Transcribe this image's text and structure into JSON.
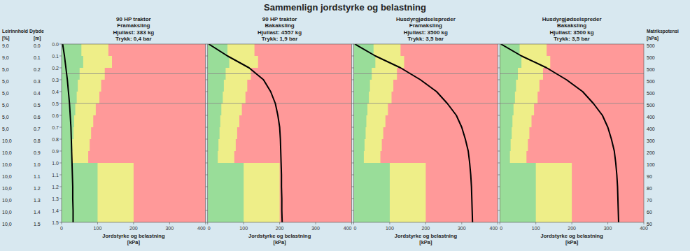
{
  "title": "Sammenlign jordstyrke og belastning",
  "color": "#d8e8f0",
  "annotations": {
    "left_header": "Leirinnhold Dybde",
    "clay_unit": "[%]",
    "depth_unit": "[m]",
    "clay": [
      "9,0",
      "9,0",
      "5,0",
      "5,0",
      "5,0",
      "5,0",
      "5,0",
      "5,0",
      "10,0",
      "10,0",
      "10,0",
      "10,0",
      "10,0",
      "10,0",
      "10,0",
      "10,0"
    ],
    "depth": [
      {
        "value": 0.0,
        "label": "0.0"
      },
      0.1,
      0.2,
      0.3,
      0.4,
      0.5,
      0.6,
      0.7,
      0.8,
      0.9,
      {
        "value": 1.0,
        "label": "1.0"
      },
      1.1,
      1.2,
      1.3,
      1.4,
      1.5
    ],
    "matric_header": "Matrikspotensi",
    "matric_unit": "[hPa]",
    "matric": [
      500,
      500,
      500,
      500,
      500,
      500,
      400,
      400,
      300,
      200,
      100,
      90,
      80,
      70,
      60,
      50
    ]
  },
  "chart_data": [
    {
      "type": "bar",
      "orientation": "horizontal",
      "title": "90 HP traktor\nFramaksling\nHjullast: 383 kg\nTrykk: 0,4 bar",
      "x_label": "Jordstyrke og belastning\n[kPa]",
      "color": "#ff9999",
      "xlim": [
        0,
        400
      ],
      "xticks": [
        0,
        100,
        200,
        300,
        400
      ],
      "ylim": [
        1.5,
        0.0
      ],
      "yticks": [
        {
          "value": 0.0,
          "label": "0.0"
        },
        0.1,
        0.2,
        0.3,
        0.4,
        0.5,
        0.6,
        0.7,
        0.8,
        0.9,
        {
          "value": 1.0,
          "label": "1.0"
        },
        1.1,
        1.2,
        1.3,
        1.4,
        1.5
      ],
      "bins": [
        0.0,
        0.1,
        0.2,
        0.3,
        0.4,
        0.5,
        0.6,
        0.7,
        0.8,
        0.9,
        1.0,
        1.1,
        1.2,
        1.3,
        1.4,
        1.5
      ],
      "series": [
        {
          "type": "bar",
          "color": "#eeee88",
          "values": [
            130,
            140,
            120,
            110,
            105,
            95,
            88,
            82,
            78,
            74,
            200,
            200,
            200,
            200,
            200
          ]
        },
        {
          "type": "bar",
          "color": "#99dd99",
          "values": [
            55,
            60,
            50,
            45,
            42,
            38,
            35,
            33,
            30,
            28,
            100,
            100,
            100,
            100,
            100
          ]
        },
        {
          "type": "hline",
          "color": "#888888",
          "values": [
            0.25,
            0.5
          ]
        },
        {
          "type": "line",
          "color": "black",
          "values": [
            3,
            8,
            12,
            16,
            19,
            22,
            24,
            26,
            27,
            28,
            29,
            30,
            31,
            31,
            32,
            32
          ]
        }
      ]
    },
    {
      "type": "bar",
      "orientation": "horizontal",
      "title": "90 HP traktor\nBakaksling\nHjullast: 4557 kg\nTrykk: 1,9 bar",
      "x_label": "Jordstyrke og belastning\n[kPa]",
      "color": "#ff9999",
      "tick_labels": "x",
      "xlim": [
        0,
        400
      ],
      "xticks": [
        0,
        100,
        200,
        300,
        400
      ],
      "ylim": [
        1.5,
        0.0
      ],
      "yticks": [
        {
          "value": 0.0,
          "label": "0.0"
        },
        0.1,
        0.2,
        0.3,
        0.4,
        0.5,
        0.6,
        0.7,
        0.8,
        0.9,
        {
          "value": 1.0,
          "label": "1.0"
        },
        1.1,
        1.2,
        1.3,
        1.4,
        1.5
      ],
      "bins": [
        0.0,
        0.1,
        0.2,
        0.3,
        0.4,
        0.5,
        0.6,
        0.7,
        0.8,
        0.9,
        1.0,
        1.1,
        1.2,
        1.3,
        1.4,
        1.5
      ],
      "series": [
        {
          "type": "bar",
          "color": "#eeee88",
          "values": [
            130,
            140,
            120,
            110,
            105,
            95,
            88,
            82,
            78,
            74,
            200,
            200,
            200,
            200,
            200
          ]
        },
        {
          "type": "bar",
          "color": "#99dd99",
          "values": [
            55,
            60,
            50,
            45,
            42,
            38,
            35,
            33,
            30,
            28,
            100,
            100,
            100,
            100,
            100
          ]
        },
        {
          "type": "hline",
          "color": "#888888",
          "values": [
            0.25,
            0.5
          ]
        },
        {
          "type": "line",
          "color": "black",
          "values": [
            3,
            55,
            115,
            155,
            175,
            188,
            195,
            200,
            202,
            203,
            204,
            205,
            205,
            206,
            206,
            207
          ]
        }
      ]
    },
    {
      "type": "bar",
      "orientation": "horizontal",
      "title": "Husdyrgjødselspreder\nFramaksling\nHjullast: 3500 kg\nTrykk: 3,5 bar",
      "x_label": "Jordstyrke og belastning\n[kPa]",
      "color": "#ff9999",
      "tick_labels": "x",
      "xlim": [
        0,
        400
      ],
      "xticks": [
        0,
        100,
        200,
        300,
        400
      ],
      "ylim": [
        1.5,
        0.0
      ],
      "yticks": [
        {
          "value": 0.0,
          "label": "0.0"
        },
        0.1,
        0.2,
        0.3,
        0.4,
        0.5,
        0.6,
        0.7,
        0.8,
        0.9,
        {
          "value": 1.0,
          "label": "1.0"
        },
        1.1,
        1.2,
        1.3,
        1.4,
        1.5
      ],
      "bins": [
        0.0,
        0.1,
        0.2,
        0.3,
        0.4,
        0.5,
        0.6,
        0.7,
        0.8,
        0.9,
        1.0,
        1.1,
        1.2,
        1.3,
        1.4,
        1.5
      ],
      "series": [
        {
          "type": "bar",
          "color": "#eeee88",
          "values": [
            130,
            140,
            120,
            110,
            105,
            95,
            88,
            82,
            78,
            74,
            200,
            200,
            200,
            200,
            200
          ]
        },
        {
          "type": "bar",
          "color": "#99dd99",
          "values": [
            55,
            60,
            50,
            45,
            42,
            38,
            35,
            33,
            30,
            28,
            100,
            100,
            100,
            100,
            100
          ]
        },
        {
          "type": "hline",
          "color": "#888888",
          "values": [
            0.25,
            0.5
          ]
        },
        {
          "type": "line",
          "color": "black",
          "values": [
            3,
            60,
            130,
            185,
            230,
            260,
            285,
            300,
            310,
            318,
            322,
            325,
            327,
            328,
            329,
            330
          ]
        }
      ]
    },
    {
      "type": "bar",
      "orientation": "horizontal",
      "title": "Husdyrgjødselspreder\nBakaksling\nHjullast: 3500 kg\nTrykk: 3,5 bar",
      "x_label": "Jordstyrke og belastning\n[kPa]",
      "color": "#ff9999",
      "tick_labels": "x",
      "xlim": [
        0,
        400
      ],
      "xticks": [
        0,
        100,
        200,
        300,
        400
      ],
      "ylim": [
        1.5,
        0.0
      ],
      "yticks": [
        {
          "value": 0.0,
          "label": "0.0"
        },
        0.1,
        0.2,
        0.3,
        0.4,
        0.5,
        0.6,
        0.7,
        0.8,
        0.9,
        {
          "value": 1.0,
          "label": "1.0"
        },
        1.1,
        1.2,
        1.3,
        1.4,
        1.5
      ],
      "bins": [
        0.0,
        0.1,
        0.2,
        0.3,
        0.4,
        0.5,
        0.6,
        0.7,
        0.8,
        0.9,
        1.0,
        1.1,
        1.2,
        1.3,
        1.4,
        1.5
      ],
      "series": [
        {
          "type": "bar",
          "color": "#eeee88",
          "values": [
            130,
            140,
            120,
            110,
            105,
            95,
            88,
            82,
            78,
            74,
            200,
            200,
            200,
            200,
            200
          ]
        },
        {
          "type": "bar",
          "color": "#99dd99",
          "values": [
            55,
            60,
            50,
            45,
            42,
            38,
            35,
            33,
            30,
            28,
            100,
            100,
            100,
            100,
            100
          ]
        },
        {
          "type": "hline",
          "color": "#888888",
          "values": [
            0.25,
            0.5
          ]
        },
        {
          "type": "line",
          "color": "black",
          "values": [
            3,
            60,
            130,
            185,
            230,
            260,
            285,
            300,
            310,
            318,
            322,
            325,
            327,
            328,
            329,
            330
          ]
        }
      ]
    }
  ]
}
